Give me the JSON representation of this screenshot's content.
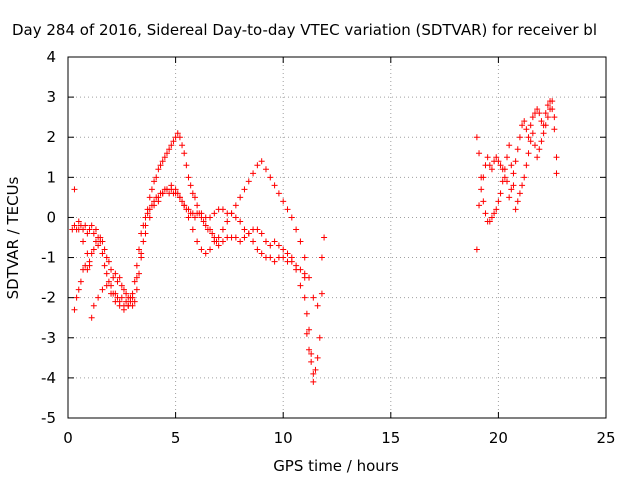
{
  "chart_data": {
    "type": "scatter",
    "title": "Day 284 of 2016, Sidereal Day-to-day VTEC variation (SDTVAR) for receiver bl",
    "xlabel": "GPS time / hours",
    "ylabel": "SDTVAR / TECUs",
    "xlim": [
      0,
      25
    ],
    "ylim": [
      -5,
      4
    ],
    "xticks": [
      0,
      5,
      10,
      15,
      20,
      25
    ],
    "yticks": [
      -5,
      -4,
      -3,
      -2,
      -1,
      0,
      1,
      2,
      3,
      4
    ],
    "grid": true,
    "marker": "+",
    "color": "#ff0000",
    "series": [
      {
        "x": [
          0.2,
          0.3,
          0.4,
          0.5,
          0.6,
          0.7,
          0.8,
          0.9,
          1.0,
          1.1,
          1.2,
          1.3,
          1.4,
          1.5,
          1.6,
          1.7,
          1.8,
          1.9,
          2.0,
          2.1,
          2.2,
          2.3,
          2.4,
          2.5,
          2.6,
          2.7,
          2.8,
          2.9,
          3.0,
          3.1,
          3.2,
          3.3,
          3.4,
          3.5,
          3.6,
          3.7,
          3.8,
          3.9,
          4.0,
          4.1,
          4.2,
          4.3,
          4.4,
          4.5,
          4.6,
          4.7,
          4.8,
          4.9,
          5.0,
          5.1,
          5.2,
          5.3,
          5.4,
          5.5,
          5.6,
          5.7,
          5.8,
          5.9,
          6.0,
          6.2,
          6.4,
          6.6,
          6.8,
          7.0,
          7.2,
          7.4,
          7.6,
          7.8,
          8.0,
          8.2,
          8.4,
          8.6,
          8.8,
          9.0,
          9.2,
          9.4,
          9.6,
          9.8,
          10.0,
          10.2,
          10.4,
          10.6,
          10.8,
          11.0
        ],
        "y": [
          -0.3,
          -0.2,
          -0.3,
          -0.1,
          -0.2,
          -0.3,
          -0.2,
          -0.4,
          -0.3,
          -0.2,
          -0.4,
          -0.3,
          -0.5,
          -0.6,
          -0.9,
          -1.2,
          -1.4,
          -1.6,
          -1.7,
          -1.9,
          -1.9,
          -2.0,
          -2.1,
          -2.0,
          -2.2,
          -2.1,
          -2.2,
          -2.0,
          -1.9,
          -1.6,
          -1.2,
          -0.8,
          -0.4,
          -0.2,
          0.0,
          0.1,
          0.2,
          0.3,
          0.4,
          0.5,
          0.5,
          0.6,
          0.6,
          0.7,
          0.7,
          0.6,
          0.7,
          0.6,
          0.6,
          0.6,
          0.5,
          0.4,
          0.3,
          0.2,
          0.2,
          0.1,
          0.1,
          0.0,
          0.1,
          0.1,
          0.0,
          0.0,
          0.1,
          0.2,
          0.2,
          0.1,
          0.1,
          0.0,
          -0.1,
          -0.3,
          -0.4,
          -0.6,
          -0.8,
          -0.9,
          -1.0,
          -1.0,
          -1.1,
          -1.0,
          -1.0,
          -1.1,
          -1.1,
          -1.2,
          -1.3,
          -1.4
        ]
      },
      {
        "x": [
          0.3,
          0.4,
          0.5,
          0.6,
          0.7,
          0.8,
          0.9,
          1.0,
          1.1,
          1.2,
          1.3,
          1.4,
          1.5,
          1.6,
          1.7,
          1.8,
          1.9,
          2.0,
          2.1,
          2.2,
          2.3,
          2.4,
          2.5,
          2.6,
          2.7,
          2.8,
          2.9,
          3.0,
          3.1,
          3.2,
          3.3,
          3.4,
          3.5,
          3.6,
          3.7,
          3.8,
          3.9,
          4.0,
          4.1,
          4.2,
          4.3,
          4.4,
          4.5,
          4.6,
          4.7,
          4.8,
          4.9,
          5.0,
          5.1,
          5.2,
          5.3,
          5.4,
          5.5,
          5.6,
          5.7,
          5.8,
          5.9,
          6.0,
          6.1,
          6.2,
          6.3,
          6.4,
          6.5,
          6.6,
          6.7,
          6.8,
          6.9,
          7.0,
          7.2,
          7.4,
          7.6,
          7.8,
          8.0,
          8.2,
          8.4,
          8.6,
          8.8,
          9.0,
          9.2,
          9.4,
          9.6,
          9.8,
          10.0,
          10.2,
          10.4,
          10.6,
          10.8,
          11.0,
          11.1,
          11.2,
          11.3,
          11.4
        ],
        "y": [
          -2.3,
          -2.0,
          -1.8,
          -1.6,
          -1.3,
          -1.2,
          -1.3,
          -1.1,
          -0.9,
          -0.8,
          -0.6,
          -0.7,
          -0.5,
          -0.6,
          -0.8,
          -1.0,
          -1.1,
          -1.3,
          -1.5,
          -1.4,
          -1.6,
          -1.5,
          -1.7,
          -1.8,
          -1.9,
          -2.0,
          -2.1,
          -2.2,
          -2.1,
          -1.8,
          -1.4,
          -1.0,
          -0.6,
          -0.2,
          0.2,
          0.5,
          0.7,
          0.9,
          1.0,
          1.2,
          1.3,
          1.4,
          1.5,
          1.6,
          1.7,
          1.8,
          1.9,
          2.0,
          2.1,
          2.0,
          1.8,
          1.6,
          1.3,
          1.0,
          0.8,
          0.6,
          0.5,
          0.3,
          0.1,
          0.0,
          -0.1,
          -0.2,
          -0.3,
          -0.3,
          -0.4,
          -0.5,
          -0.6,
          -0.7,
          -0.6,
          -0.5,
          -0.5,
          -0.5,
          -0.6,
          -0.5,
          -0.4,
          -0.3,
          -0.3,
          -0.4,
          -0.6,
          -0.7,
          -0.6,
          -0.7,
          -0.8,
          -0.9,
          -1.0,
          -1.3,
          -1.7,
          -2.0,
          -2.4,
          -2.8,
          -3.4,
          -3.9
        ]
      },
      {
        "x": [
          0.3,
          0.5,
          0.7,
          0.9,
          1.0,
          1.1,
          1.2,
          1.4,
          1.6,
          1.8,
          2.0,
          2.2,
          2.4,
          2.6,
          2.8,
          3.0,
          3.2,
          3.4,
          3.6,
          3.8,
          4.0,
          4.2,
          4.4,
          4.6,
          4.8,
          5.0,
          5.2,
          5.4,
          5.6,
          5.8,
          6.0,
          6.2,
          6.4,
          6.6,
          6.8,
          7.0,
          7.2,
          7.4,
          7.6,
          7.8,
          8.0,
          8.2,
          8.4,
          8.6,
          8.8,
          9.0,
          9.2,
          9.4,
          9.6,
          9.8,
          10.0,
          10.2,
          10.4,
          10.6,
          10.8,
          11.0,
          11.2,
          11.4,
          11.6,
          11.8
        ],
        "y": [
          0.7,
          -0.3,
          -0.6,
          -0.9,
          -1.2,
          -2.5,
          -2.2,
          -2.0,
          -1.8,
          -1.7,
          -1.9,
          -2.1,
          -2.2,
          -2.3,
          -2.2,
          -2.0,
          -1.5,
          -0.9,
          -0.4,
          0.0,
          0.3,
          0.4,
          0.6,
          0.7,
          0.8,
          0.7,
          0.5,
          0.3,
          0.0,
          -0.3,
          -0.6,
          -0.8,
          -0.9,
          -0.8,
          -0.6,
          -0.5,
          -0.3,
          -0.1,
          0.1,
          0.3,
          0.5,
          0.7,
          0.9,
          1.1,
          1.3,
          1.4,
          1.2,
          1.0,
          0.8,
          0.6,
          0.4,
          0.2,
          0.0,
          -0.3,
          -0.6,
          -1.0,
          -1.5,
          -2.0,
          -2.2,
          -1.9
        ]
      },
      {
        "x": [
          11.0,
          11.1,
          11.2,
          11.3,
          11.4,
          11.5,
          11.6,
          11.7,
          11.8,
          11.9
        ],
        "y": [
          -1.5,
          -2.9,
          -3.3,
          -3.6,
          -4.1,
          -3.8,
          -3.5,
          -3.0,
          -1.0,
          -0.5
        ]
      },
      {
        "x": [
          19.0,
          19.1,
          19.2,
          19.3,
          19.4,
          19.5,
          19.6,
          19.7,
          19.8,
          19.9,
          20.0,
          20.1,
          20.2,
          20.3,
          20.4,
          20.5,
          20.6,
          20.7,
          20.8,
          20.9,
          21.0,
          21.1,
          21.2,
          21.3,
          21.4,
          21.5,
          21.6,
          21.7,
          21.8,
          21.9,
          22.0,
          22.1,
          22.2,
          22.3,
          22.4,
          22.5,
          22.6,
          22.7
        ],
        "y": [
          -0.8,
          0.3,
          0.7,
          1.0,
          1.3,
          1.5,
          1.3,
          1.2,
          1.4,
          1.5,
          1.4,
          1.3,
          1.2,
          1.0,
          0.9,
          0.5,
          0.7,
          1.1,
          1.4,
          1.7,
          2.0,
          2.3,
          2.4,
          2.2,
          2.0,
          2.3,
          2.5,
          2.6,
          2.7,
          2.6,
          2.4,
          2.3,
          2.6,
          2.8,
          2.9,
          2.7,
          2.2,
          1.1
        ]
      },
      {
        "x": [
          19.0,
          19.1,
          19.2,
          19.3,
          19.4,
          19.5,
          19.6,
          19.7,
          19.8,
          19.9,
          20.0,
          20.1,
          20.2,
          20.3,
          20.4,
          20.5,
          20.6,
          20.7,
          20.8,
          20.9,
          21.0,
          21.1,
          21.2,
          21.3,
          21.4,
          21.5,
          21.6,
          21.7,
          21.8,
          21.9,
          22.0,
          22.1,
          22.2,
          22.3,
          22.4,
          22.5,
          22.6,
          22.7
        ],
        "y": [
          2.0,
          1.6,
          1.0,
          0.4,
          0.1,
          -0.1,
          -0.1,
          0.0,
          0.1,
          0.2,
          0.4,
          0.6,
          0.9,
          1.2,
          1.5,
          1.8,
          1.3,
          0.8,
          0.2,
          0.4,
          0.6,
          0.8,
          1.0,
          1.3,
          1.6,
          1.9,
          2.1,
          1.8,
          1.5,
          1.7,
          1.9,
          2.1,
          2.3,
          2.5,
          2.7,
          2.9,
          2.5,
          1.5
        ]
      }
    ]
  }
}
